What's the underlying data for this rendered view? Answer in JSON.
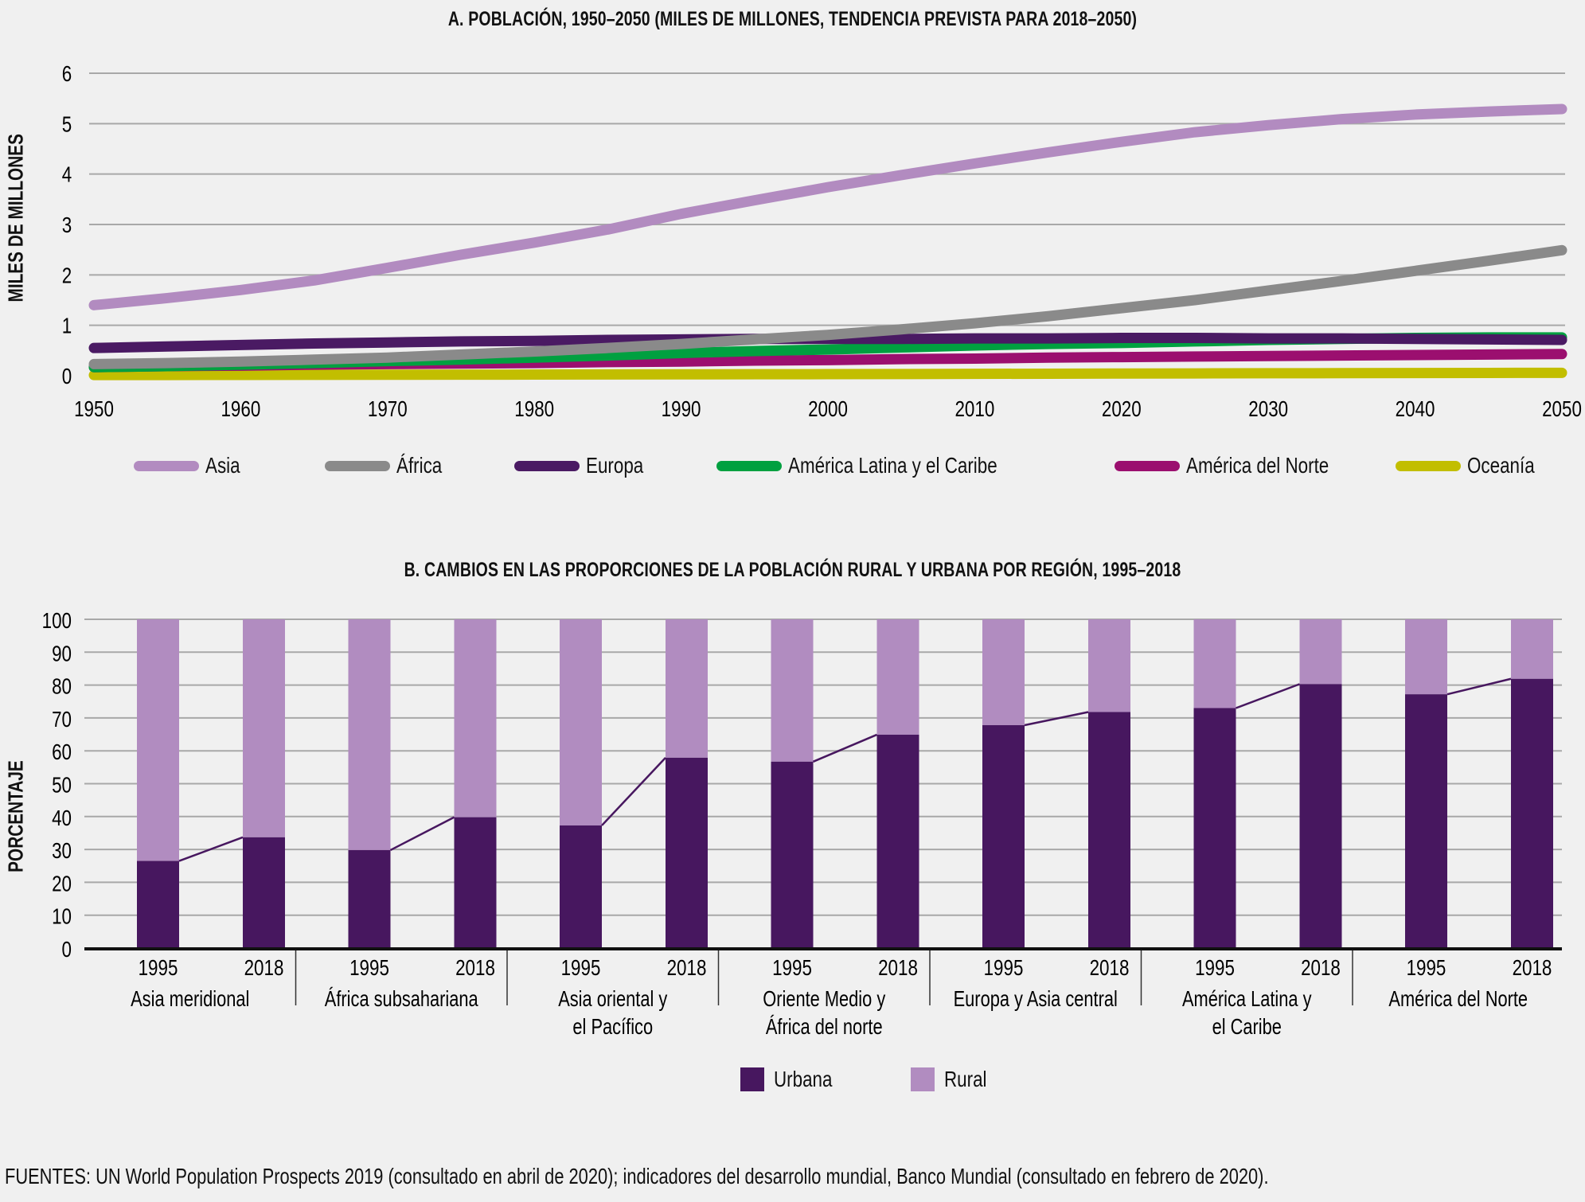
{
  "chart_data": [
    {
      "type": "line",
      "title": "A. POBLACIÓN, 1950–2050 (MILES DE MILLONES, TENDENCIA PREVISTA PARA 2018–2050)",
      "xlabel": "",
      "ylabel": "MILES DE MILLONES",
      "ylim": [
        0,
        6
      ],
      "xlim": [
        1950,
        2050
      ],
      "yticks": [
        "0",
        "1",
        "2",
        "3",
        "4",
        "5",
        "6"
      ],
      "xticks": [
        "1950",
        "1960",
        "1970",
        "1980",
        "1990",
        "2000",
        "2010",
        "2020",
        "2030",
        "2040",
        "2050"
      ],
      "grid": true,
      "legend_position": "bottom",
      "x": [
        1950,
        1955,
        1960,
        1965,
        1970,
        1975,
        1980,
        1985,
        1990,
        1995,
        2000,
        2005,
        2010,
        2015,
        2020,
        2025,
        2030,
        2035,
        2040,
        2045,
        2050
      ],
      "series": [
        {
          "name": "Asia",
          "color": "#b28bc0",
          "values": [
            1.4,
            1.54,
            1.7,
            1.89,
            2.14,
            2.4,
            2.64,
            2.9,
            3.21,
            3.48,
            3.74,
            3.98,
            4.21,
            4.43,
            4.64,
            4.83,
            4.97,
            5.09,
            5.18,
            5.24,
            5.29
          ]
        },
        {
          "name": "África",
          "color": "#8a8a8a",
          "values": [
            0.23,
            0.25,
            0.28,
            0.32,
            0.36,
            0.42,
            0.48,
            0.55,
            0.63,
            0.72,
            0.81,
            0.92,
            1.04,
            1.18,
            1.34,
            1.5,
            1.69,
            1.88,
            2.08,
            2.28,
            2.49
          ]
        },
        {
          "name": "Europa",
          "color": "#4a1a63",
          "values": [
            0.55,
            0.58,
            0.61,
            0.64,
            0.66,
            0.68,
            0.69,
            0.71,
            0.72,
            0.73,
            0.73,
            0.73,
            0.74,
            0.74,
            0.75,
            0.75,
            0.74,
            0.74,
            0.73,
            0.72,
            0.71
          ]
        },
        {
          "name": "América Latina y el Caribe",
          "color": "#00a040",
          "values": [
            0.17,
            0.19,
            0.22,
            0.25,
            0.29,
            0.32,
            0.36,
            0.4,
            0.45,
            0.49,
            0.52,
            0.56,
            0.6,
            0.63,
            0.65,
            0.68,
            0.71,
            0.73,
            0.75,
            0.76,
            0.76
          ]
        },
        {
          "name": "América del Norte",
          "color": "#9b0f6f",
          "values": [
            0.17,
            0.19,
            0.2,
            0.22,
            0.23,
            0.24,
            0.25,
            0.27,
            0.28,
            0.3,
            0.31,
            0.33,
            0.34,
            0.36,
            0.37,
            0.38,
            0.39,
            0.4,
            0.41,
            0.42,
            0.43
          ]
        },
        {
          "name": "Oceanía",
          "color": "#c2be00",
          "values": [
            0.013,
            0.014,
            0.016,
            0.018,
            0.02,
            0.021,
            0.023,
            0.025,
            0.027,
            0.029,
            0.031,
            0.033,
            0.037,
            0.04,
            0.043,
            0.046,
            0.049,
            0.051,
            0.054,
            0.056,
            0.057
          ]
        }
      ]
    },
    {
      "type": "bar",
      "stacked": true,
      "title": "B. CAMBIOS EN LAS PROPORCIONES DE LA POBLACIÓN RURAL Y URBANA POR REGIÓN, 1995–2018",
      "xlabel": "",
      "ylabel": "PORCENTAJE",
      "ylim": [
        0,
        100
      ],
      "yticks": [
        "0",
        "10",
        "20",
        "30",
        "40",
        "50",
        "60",
        "70",
        "80",
        "90",
        "100"
      ],
      "grid": true,
      "legend_position": "bottom",
      "groups": [
        {
          "name_lines": [
            "Asia meridional"
          ],
          "years": [
            "1995",
            "2018"
          ],
          "urbana": [
            26.5,
            33.7
          ]
        },
        {
          "name_lines": [
            "África subsahariana"
          ],
          "years": [
            "1995",
            "2018"
          ],
          "urbana": [
            29.8,
            39.8
          ]
        },
        {
          "name_lines": [
            "Asia oriental y",
            "el Pacífico"
          ],
          "years": [
            "1995",
            "2018"
          ],
          "urbana": [
            37.3,
            57.9
          ]
        },
        {
          "name_lines": [
            "Oriente Medio y",
            "África del norte"
          ],
          "years": [
            "1995",
            "2018"
          ],
          "urbana": [
            56.7,
            64.9
          ]
        },
        {
          "name_lines": [
            "Europa y Asia central"
          ],
          "years": [
            "1995",
            "2018"
          ],
          "urbana": [
            67.8,
            71.8
          ]
        },
        {
          "name_lines": [
            "América Latina y",
            "el Caribe"
          ],
          "years": [
            "1995",
            "2018"
          ],
          "urbana": [
            73.0,
            80.3
          ]
        },
        {
          "name_lines": [
            "América del Norte"
          ],
          "years": [
            "1995",
            "2018"
          ],
          "urbana": [
            77.2,
            81.9
          ]
        }
      ],
      "series": [
        {
          "name": "Urbana",
          "color": "#47175f"
        },
        {
          "name": "Rural",
          "color": "#b18cc0"
        }
      ]
    }
  ],
  "source": "FUENTES: UN World Population Prospects 2019 (consultado en abril de 2020); indicadores del desarrollo mundial, Banco Mundial (consultado en febrero de 2020)."
}
